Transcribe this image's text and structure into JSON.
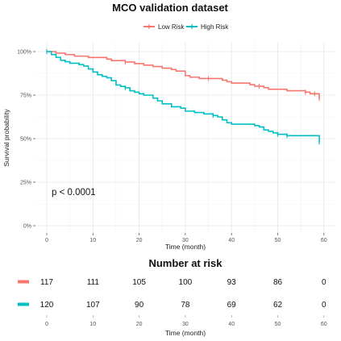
{
  "chart_data": {
    "type": "line",
    "title": "MCO validation dataset",
    "xlabel": "Time (month)",
    "ylabel": "Survival probability",
    "xlim": [
      -2,
      61
    ],
    "ylim": [
      0,
      1
    ],
    "x_ticks": [
      0,
      10,
      20,
      30,
      40,
      50,
      60
    ],
    "y_ticks": [
      0,
      0.25,
      0.5,
      0.75,
      1.0
    ],
    "y_tick_labels": [
      "0%",
      "25%",
      "50%",
      "75%",
      "100%"
    ],
    "grid": true,
    "legend_position": "top",
    "annotation": "p < 0.0001",
    "series": [
      {
        "name": "Low Risk",
        "color": "#f8766d",
        "steps": [
          [
            0,
            1.0
          ],
          [
            2,
            0.991
          ],
          [
            4,
            0.983
          ],
          [
            6,
            0.974
          ],
          [
            9,
            0.966
          ],
          [
            13,
            0.957
          ],
          [
            14,
            0.948
          ],
          [
            17,
            0.94
          ],
          [
            19,
            0.931
          ],
          [
            21,
            0.922
          ],
          [
            23,
            0.914
          ],
          [
            25,
            0.905
          ],
          [
            27,
            0.897
          ],
          [
            28,
            0.888
          ],
          [
            30,
            0.862
          ],
          [
            31,
            0.853
          ],
          [
            33,
            0.845
          ],
          [
            38,
            0.836
          ],
          [
            39,
            0.827
          ],
          [
            40,
            0.819
          ],
          [
            44,
            0.81
          ],
          [
            45,
            0.801
          ],
          [
            47,
            0.793
          ],
          [
            48,
            0.784
          ],
          [
            52,
            0.775
          ],
          [
            56,
            0.767
          ],
          [
            57,
            0.758
          ],
          [
            59,
            0.73
          ]
        ],
        "censors": [
          [
            0,
            1.0
          ],
          [
            17,
            0.94
          ],
          [
            35,
            0.845
          ],
          [
            46,
            0.801
          ],
          [
            56,
            0.767
          ],
          [
            58,
            0.758
          ],
          [
            59,
            0.73
          ]
        ]
      },
      {
        "name": "High Risk",
        "color": "#00bfc4",
        "steps": [
          [
            0,
            1.0
          ],
          [
            1,
            0.983
          ],
          [
            2,
            0.967
          ],
          [
            3,
            0.95
          ],
          [
            4,
            0.942
          ],
          [
            5,
            0.933
          ],
          [
            7,
            0.925
          ],
          [
            8,
            0.917
          ],
          [
            9,
            0.9
          ],
          [
            10,
            0.883
          ],
          [
            11,
            0.867
          ],
          [
            12,
            0.858
          ],
          [
            13,
            0.85
          ],
          [
            14,
            0.833
          ],
          [
            15,
            0.808
          ],
          [
            16,
            0.8
          ],
          [
            17,
            0.792
          ],
          [
            18,
            0.775
          ],
          [
            19,
            0.767
          ],
          [
            20,
            0.758
          ],
          [
            21,
            0.75
          ],
          [
            23,
            0.733
          ],
          [
            24,
            0.717
          ],
          [
            25,
            0.7
          ],
          [
            27,
            0.683
          ],
          [
            29,
            0.675
          ],
          [
            30,
            0.658
          ],
          [
            32,
            0.65
          ],
          [
            34,
            0.642
          ],
          [
            36,
            0.633
          ],
          [
            37,
            0.625
          ],
          [
            38,
            0.608
          ],
          [
            39,
            0.592
          ],
          [
            40,
            0.583
          ],
          [
            45,
            0.575
          ],
          [
            46,
            0.567
          ],
          [
            47,
            0.55
          ],
          [
            48,
            0.542
          ],
          [
            49,
            0.533
          ],
          [
            50,
            0.525
          ],
          [
            52,
            0.517
          ],
          [
            59,
            0.48
          ]
        ],
        "censors": [
          [
            0,
            1.0
          ],
          [
            17,
            0.792
          ],
          [
            36,
            0.633
          ],
          [
            50,
            0.525
          ],
          [
            52,
            0.517
          ],
          [
            59,
            0.48
          ]
        ]
      }
    ]
  },
  "legend": {
    "items": [
      {
        "label": "Low Risk",
        "color": "#f8766d"
      },
      {
        "label": "High Risk",
        "color": "#00bfc4"
      }
    ]
  },
  "risk_table": {
    "title": "Number at risk",
    "xlabel": "Time (month)",
    "times": [
      0,
      10,
      20,
      30,
      40,
      50,
      60
    ],
    "rows": [
      {
        "name": "Low Risk",
        "color": "#f8766d",
        "counts": [
          117,
          111,
          105,
          100,
          93,
          86,
          0
        ]
      },
      {
        "name": "High Risk",
        "color": "#00bfc4",
        "counts": [
          120,
          107,
          90,
          78,
          69,
          62,
          0
        ]
      }
    ]
  }
}
